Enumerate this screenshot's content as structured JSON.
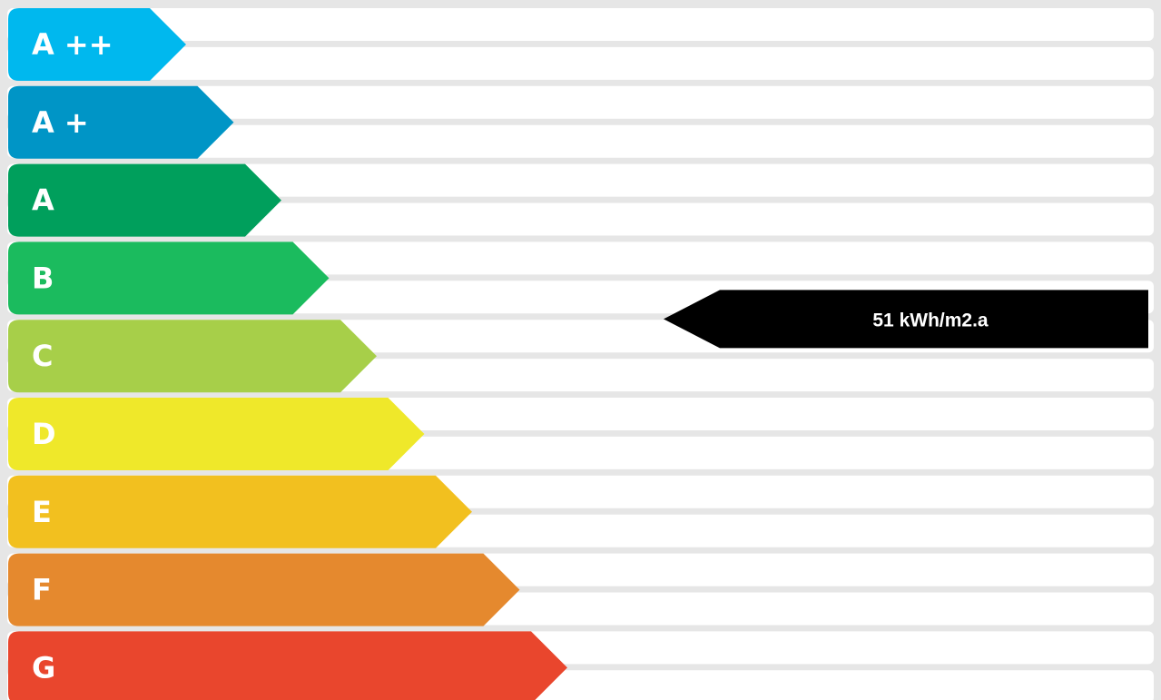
{
  "chart_data": {
    "type": "bar",
    "categories": [
      "A ++",
      "A +",
      "A",
      "B",
      "C",
      "D",
      "E",
      "F",
      "G"
    ],
    "colors": [
      "#00b8ee",
      "#0095c6",
      "#009f5c",
      "#1bbb5e",
      "#a7cf49",
      "#efe82a",
      "#f2c01f",
      "#e5892e",
      "#e9462d"
    ],
    "indicator": {
      "band_index": 3,
      "label": "51 kWh/m2.a",
      "color": "#000000"
    }
  }
}
